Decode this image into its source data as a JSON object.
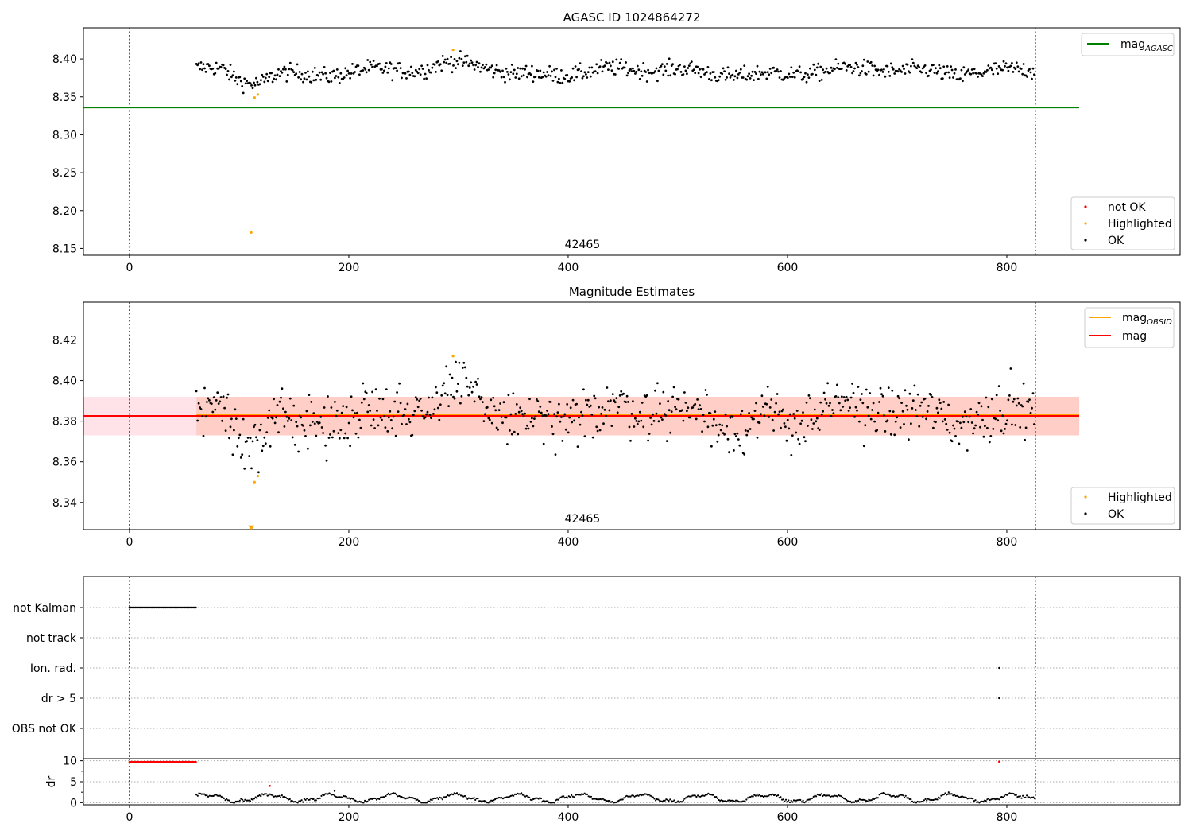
{
  "title": "AGASC ID 1024864272",
  "chart_data": [
    {
      "panel": "agasc",
      "type": "scatter",
      "title": "AGASC ID 1024864272",
      "annotation": "42465",
      "xlim": [
        -42,
        958
      ],
      "ylim": [
        8.141,
        8.441
      ],
      "xticks": [
        0,
        200,
        400,
        600,
        800
      ],
      "xtick_labels": [
        "0",
        "200",
        "400",
        "600",
        "800"
      ],
      "yticks": [
        8.15,
        8.2,
        8.25,
        8.3,
        8.35,
        8.4
      ],
      "ytick_labels": [
        "8.15",
        "8.20",
        "8.25",
        "8.30",
        "8.35",
        "8.40"
      ],
      "vlines_x": [
        0,
        826
      ],
      "series": [
        {
          "name": "mag_AGASC",
          "type": "line",
          "color": "#008000",
          "x": [
            -42,
            866
          ],
          "y": [
            8.336,
            8.336
          ]
        },
        {
          "name": "not OK",
          "type": "scatter",
          "color": "#ff0000",
          "x": [],
          "y": []
        },
        {
          "name": "Highlighted",
          "type": "scatter",
          "color": "#ffa500",
          "x": [
            111,
            114,
            117,
            295
          ],
          "y": [
            8.171,
            8.349,
            8.353,
            8.412
          ]
        },
        {
          "name": "OK",
          "type": "scatter",
          "color": "#000000",
          "x": [],
          "y": []
        }
      ],
      "legends": [
        {
          "position": "top-right",
          "entries": [
            {
              "label": "mag",
              "sub": "AGASC",
              "color": "#008000",
              "kind": "line"
            }
          ]
        },
        {
          "position": "bottom-right",
          "entries": [
            {
              "label": "not OK",
              "color": "#ff0000",
              "kind": "dot"
            },
            {
              "label": "Highlighted",
              "color": "#ffa500",
              "kind": "dot"
            },
            {
              "label": "OK",
              "color": "#000000",
              "kind": "dot"
            }
          ]
        }
      ]
    },
    {
      "panel": "estimates",
      "type": "scatter",
      "title": "Magnitude Estimates",
      "annotation": "42465",
      "xlim": [
        -42,
        958
      ],
      "ylim": [
        8.3266,
        8.4386
      ],
      "xticks": [
        0,
        200,
        400,
        600,
        800
      ],
      "xtick_labels": [
        "0",
        "200",
        "400",
        "600",
        "800"
      ],
      "yticks": [
        8.34,
        8.36,
        8.38,
        8.4,
        8.42
      ],
      "ytick_labels": [
        "8.34",
        "8.36",
        "8.38",
        "8.40",
        "8.42"
      ],
      "vlines_x": [
        0,
        826
      ],
      "bands": [
        {
          "x": [
            -42,
            866
          ],
          "y": [
            8.373,
            8.392
          ],
          "color": "#ffc0cb",
          "opacity": 0.45
        },
        {
          "x": [
            61,
            866
          ],
          "y": [
            8.373,
            8.392
          ],
          "color": "#ffa07a",
          "opacity": 0.3
        }
      ],
      "series": [
        {
          "name": "mag_OBSID",
          "type": "line",
          "color": "#ffa500",
          "x": [
            61,
            866
          ],
          "y": [
            8.383,
            8.383
          ]
        },
        {
          "name": "mag",
          "type": "line",
          "color": "#ff0000",
          "x": [
            -42,
            866
          ],
          "y": [
            8.3826,
            8.3826
          ]
        },
        {
          "name": "Highlighted",
          "type": "scatter",
          "color": "#ffa500",
          "x": [
            114,
            117,
            295
          ],
          "y": [
            8.35,
            8.353,
            8.412
          ]
        },
        {
          "name": "OK",
          "type": "scatter",
          "color": "#000000",
          "x": [],
          "y": []
        }
      ],
      "markers": [
        {
          "x": 111,
          "y": 8.3275,
          "color": "#ffa500",
          "shape": "triangle-down"
        }
      ],
      "legends": [
        {
          "position": "top-right",
          "entries": [
            {
              "label": "mag",
              "sub": "OBSID",
              "color": "#ffa500",
              "kind": "line"
            },
            {
              "label": "mag",
              "sub": "",
              "color": "#ff0000",
              "kind": "line"
            }
          ]
        },
        {
          "position": "bottom-right",
          "entries": [
            {
              "label": "Highlighted",
              "color": "#ffa500",
              "kind": "dot"
            },
            {
              "label": "OK",
              "color": "#000000",
              "kind": "dot"
            }
          ]
        }
      ]
    },
    {
      "panel": "flags",
      "type": "scatter",
      "xlim": [
        -42,
        958
      ],
      "categories": [
        "not Kalman",
        "not track",
        "Ion. rad.",
        "dr > 5",
        "OBS not OK"
      ],
      "vlines_x": [
        0,
        826
      ],
      "series": [
        {
          "name": "not Kalman",
          "type": "scatter",
          "color": "#000000",
          "x_range": [
            0,
            61
          ]
        },
        {
          "name": "Ion. rad.",
          "type": "scatter",
          "color": "#000000",
          "x": [
            793
          ]
        },
        {
          "name": "dr > 5",
          "type": "scatter",
          "color": "#000000",
          "x": [
            793
          ]
        }
      ]
    },
    {
      "panel": "dr",
      "type": "scatter",
      "ylabel": "dr",
      "xlim": [
        -42,
        958
      ],
      "ylim": [
        -0.5,
        10.5
      ],
      "xticks": [
        0,
        200,
        400,
        600,
        800
      ],
      "xtick_labels": [
        "0",
        "200",
        "400",
        "600",
        "800"
      ],
      "yticks": [
        0,
        5,
        10
      ],
      "ytick_labels": [
        "0",
        "5",
        "10"
      ],
      "vlines_x": [
        0,
        826
      ],
      "series": [
        {
          "name": "clipped",
          "type": "scatter",
          "color": "#ff0000",
          "x_range": [
            0,
            61
          ],
          "value": 9.7
        },
        {
          "name": "outliers",
          "type": "scatter",
          "color": "#ff0000",
          "x": [
            128,
            793
          ],
          "y": [
            4.0,
            9.8
          ]
        },
        {
          "name": "dr",
          "type": "scatter",
          "color": "#000000",
          "x_range": [
            61,
            826
          ]
        }
      ]
    }
  ]
}
